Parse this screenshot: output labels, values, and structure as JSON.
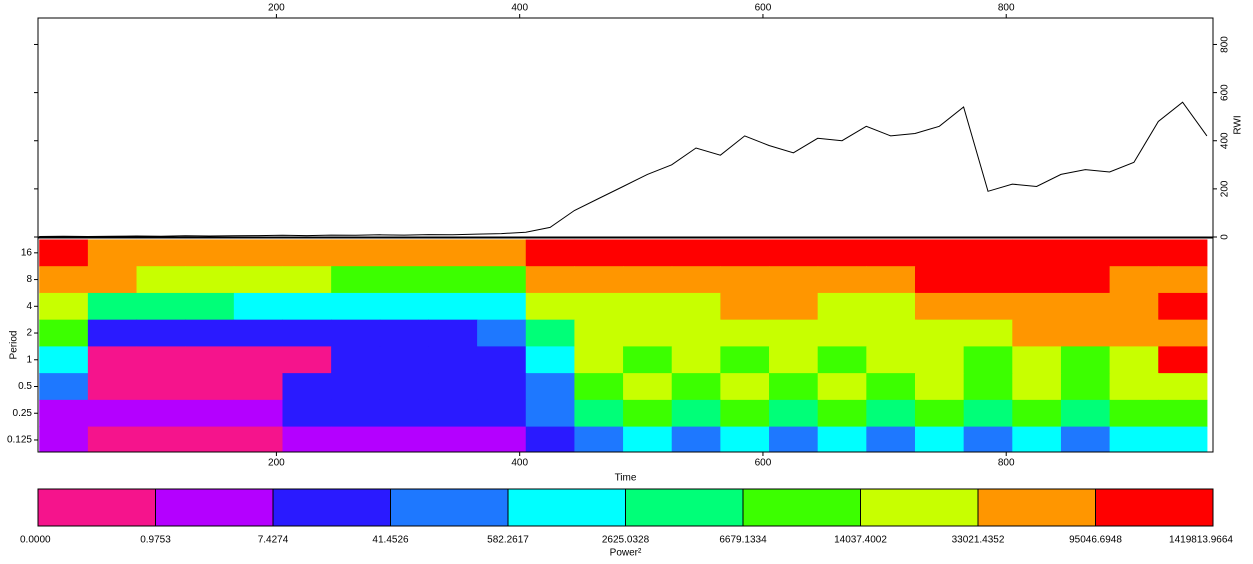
{
  "chart_data": [
    {
      "type": "line",
      "color": "#000000",
      "y2label": "RWI",
      "x": [
        5,
        25,
        45,
        65,
        85,
        105,
        125,
        145,
        165,
        185,
        205,
        225,
        245,
        265,
        285,
        305,
        325,
        345,
        365,
        385,
        405,
        425,
        445,
        465,
        485,
        505,
        525,
        545,
        565,
        585,
        605,
        625,
        645,
        665,
        685,
        705,
        725,
        745,
        765,
        785,
        805,
        825,
        845,
        865,
        885,
        905,
        925,
        945,
        965
      ],
      "values": [
        2,
        3,
        2,
        3,
        4,
        3,
        5,
        4,
        5,
        6,
        7,
        6,
        8,
        7,
        9,
        8,
        10,
        9,
        12,
        14,
        20,
        40,
        110,
        160,
        210,
        260,
        300,
        370,
        340,
        420,
        380,
        350,
        410,
        400,
        460,
        420,
        430,
        460,
        540,
        190,
        220,
        210,
        260,
        280,
        270,
        310,
        480,
        560,
        420
      ],
      "xlim": [
        4,
        970
      ],
      "xticks": [
        200,
        400,
        600,
        800
      ],
      "y2lim": [
        0,
        910
      ],
      "y2ticks": [
        0,
        200,
        400,
        600,
        800
      ]
    },
    {
      "type": "heatmap",
      "xlabel": "Time",
      "ylabel": "Period",
      "log_y": true,
      "x": [
        25,
        65,
        105,
        145,
        185,
        225,
        265,
        305,
        345,
        385,
        425,
        465,
        505,
        545,
        585,
        625,
        665,
        705,
        745,
        785,
        825,
        865,
        905,
        945
      ],
      "y": [
        16,
        8,
        4,
        2,
        1,
        0.5,
        0.25,
        0.125
      ],
      "z": [
        [
          200000,
          60000,
          60000,
          60000,
          60000,
          60000,
          60000,
          60000,
          60000,
          60000,
          200000,
          200000,
          200000,
          200000,
          200000,
          200000,
          200000,
          200000,
          200000,
          200000,
          200000,
          200000,
          200000,
          200000
        ],
        [
          60000,
          60000,
          20000,
          20000,
          20000,
          20000,
          10000,
          10000,
          10000,
          10000,
          60000,
          60000,
          60000,
          60000,
          60000,
          60000,
          60000,
          60000,
          200000,
          200000,
          200000,
          200000,
          60000,
          60000
        ],
        [
          20000,
          4500,
          4500,
          4500,
          1500,
          1500,
          1500,
          1500,
          1500,
          1500,
          20000,
          20000,
          20000,
          20000,
          60000,
          60000,
          20000,
          20000,
          60000,
          60000,
          60000,
          60000,
          60000,
          200000
        ],
        [
          10000,
          20,
          20,
          20,
          20,
          20,
          20,
          20,
          20,
          300,
          4500,
          20000,
          20000,
          20000,
          20000,
          20000,
          20000,
          20000,
          20000,
          20000,
          60000,
          60000,
          60000,
          60000
        ],
        [
          1500,
          0.5,
          0.5,
          0.5,
          0.5,
          0.5,
          20,
          20,
          20,
          20,
          1500,
          20000,
          10000,
          20000,
          10000,
          20000,
          10000,
          20000,
          20000,
          10000,
          20000,
          10000,
          20000,
          200000
        ],
        [
          300,
          0.5,
          0.5,
          0.5,
          0.5,
          20,
          20,
          20,
          20,
          20,
          300,
          10000,
          20000,
          10000,
          20000,
          10000,
          20000,
          10000,
          20000,
          10000,
          20000,
          10000,
          20000,
          20000
        ],
        [
          4,
          4,
          4,
          4,
          4,
          20,
          20,
          20,
          20,
          20,
          300,
          4500,
          10000,
          4500,
          10000,
          4500,
          10000,
          4500,
          10000,
          4500,
          10000,
          4500,
          10000,
          10000
        ],
        [
          4,
          0.5,
          0.5,
          0.5,
          0.5,
          4,
          4,
          4,
          4,
          4,
          20,
          300,
          1500,
          300,
          1500,
          300,
          1500,
          300,
          1500,
          300,
          1500,
          300,
          1500,
          1500
        ]
      ],
      "xlim": [
        4,
        970
      ],
      "xticks": [
        200,
        400,
        600,
        800
      ],
      "ylim": [
        0.0915,
        23.5
      ],
      "yticks": [
        0.125,
        0.25,
        0.5,
        1,
        2,
        4,
        8,
        16
      ],
      "colorbar": {
        "label": "Power²",
        "levels": [
          {
            "value": 0,
            "label": "0.0000"
          },
          {
            "value": 0.9753,
            "label": "0.9753"
          },
          {
            "value": 7.4274,
            "label": "7.4274"
          },
          {
            "value": 41.4526,
            "label": "41.4526"
          },
          {
            "value": 582.2617,
            "label": "582.2617"
          },
          {
            "value": 2625.0328,
            "label": "2625.0328"
          },
          {
            "value": 6679.1334,
            "label": "6679.1334"
          },
          {
            "value": 14037.4002,
            "label": "14037.4002"
          },
          {
            "value": 33021.4352,
            "label": "33021.4352"
          },
          {
            "value": 95046.6948,
            "label": "95046.6948"
          },
          {
            "value": 1419813.9664,
            "label": "1419813.9664"
          }
        ],
        "colors": [
          "#f5148c",
          "#b400ff",
          "#2a1aff",
          "#1e78ff",
          "#00ffff",
          "#00ff78",
          "#3cff00",
          "#c8ff00",
          "#ff9600",
          "#ff0000"
        ]
      }
    }
  ]
}
